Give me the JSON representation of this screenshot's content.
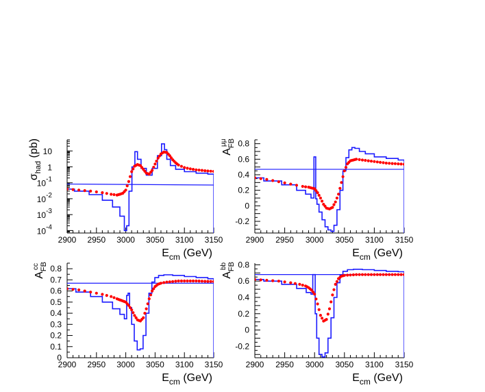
{
  "colors": {
    "blue": "#1a1aff",
    "red": "#ff0000",
    "axis": "#000000"
  },
  "chart_data": [
    {
      "type": "line",
      "panel": "sigma_had",
      "ylabel_main": "σ",
      "ylabel_sub": "had",
      "ylabel_tail": " (pb)",
      "xlabel_main": "E",
      "xlabel_sub": "cm",
      "xlabel_tail": " (GeV)",
      "xlim": [
        2900,
        3150
      ],
      "ylim": [
        7e-05,
        50
      ],
      "log_y": true,
      "xticks": [
        "2900",
        "2950",
        "3000",
        "3050",
        "3100",
        "3150"
      ],
      "yticks": [
        {
          "value": 10,
          "base": "10",
          "exp": ""
        },
        {
          "value": 1,
          "base": "1",
          "exp": ""
        },
        {
          "value": 0.1,
          "base": "10",
          "exp": "-1"
        },
        {
          "value": 0.01,
          "base": "10",
          "exp": "-2"
        },
        {
          "value": 0.001,
          "base": "10",
          "exp": "-3"
        },
        {
          "value": 0.0001,
          "base": "10",
          "exp": "-4"
        }
      ],
      "series": [
        {
          "style": "hline",
          "color": "blue",
          "x": [
            2900,
            3150
          ],
          "y": [
            0.083,
            0.072
          ]
        },
        {
          "style": "step",
          "color": "blue",
          "x": [
            2900,
            2925,
            2950,
            2970,
            2985,
            2995,
            3000,
            3003,
            3008,
            3013,
            3018,
            3022,
            3030,
            3040,
            3050,
            3058,
            3064,
            3068,
            3072,
            3080,
            3090,
            3110,
            3130,
            3150
          ],
          "y": [
            0.04,
            0.03,
            0.018,
            0.008,
            0.003,
            0.0008,
            0.0001,
            0.0002,
            0.03,
            1.0,
            9,
            3,
            0.8,
            0.3,
            0.8,
            5,
            28,
            12,
            3,
            1.2,
            0.7,
            0.5,
            0.4,
            0.35
          ]
        },
        {
          "style": "dots",
          "color": "red",
          "x": [
            2900,
            2920,
            2940,
            2960,
            2975,
            2985,
            2990,
            2995,
            3000,
            3005,
            3010,
            3015,
            3020,
            3025,
            3030,
            3035,
            3040,
            3045,
            3050,
            3055,
            3060,
            3065,
            3070,
            3075,
            3080,
            3085,
            3090,
            3100,
            3110,
            3120,
            3130,
            3140,
            3150
          ],
          "y": [
            0.04,
            0.035,
            0.03,
            0.024,
            0.019,
            0.017,
            0.019,
            0.022,
            0.035,
            0.12,
            0.5,
            1.1,
            1.4,
            1.2,
            0.7,
            0.4,
            0.35,
            0.6,
            1.5,
            3.5,
            6.5,
            8.5,
            8.0,
            5.0,
            2.8,
            1.8,
            1.3,
            0.9,
            0.75,
            0.65,
            0.6,
            0.55,
            0.52
          ]
        }
      ]
    },
    {
      "type": "line",
      "panel": "afb_mumu",
      "ylabel_main": "A",
      "ylabel_sub": "FB",
      "ylabel_sup": "μμ",
      "xlabel_main": "E",
      "xlabel_sub": "cm",
      "xlabel_tail": " (GeV)",
      "xlim": [
        2900,
        3150
      ],
      "ylim": [
        -0.35,
        0.85
      ],
      "xticks": [
        "2900",
        "2950",
        "3000",
        "3050",
        "3100",
        "3150"
      ],
      "yticks": [
        "-0.2",
        "0",
        "0.2",
        "0.4",
        "0.6",
        "0.8"
      ],
      "series": [
        {
          "style": "hline",
          "color": "blue",
          "x": [
            2900,
            3150
          ],
          "y": [
            0.47,
            0.47
          ]
        },
        {
          "style": "step",
          "color": "blue",
          "x": [
            2900,
            2930,
            2960,
            2980,
            2990,
            2998,
            3000,
            3001,
            3003,
            3005,
            3010,
            3015,
            3020,
            3025,
            3030,
            3035,
            3040,
            3045,
            3050,
            3055,
            3060,
            3065,
            3070,
            3080,
            3090,
            3110,
            3130,
            3150
          ],
          "y": [
            0.36,
            0.32,
            0.27,
            0.2,
            0.15,
            0.1,
            0.63,
            0.63,
            0.09,
            0.02,
            -0.08,
            -0.18,
            -0.27,
            -0.31,
            -0.33,
            -0.25,
            -0.05,
            0.2,
            0.45,
            0.62,
            0.72,
            0.75,
            0.74,
            0.7,
            0.67,
            0.63,
            0.61,
            0.59
          ]
        },
        {
          "style": "dots",
          "color": "red",
          "x": [
            2900,
            2920,
            2940,
            2960,
            2980,
            2990,
            2995,
            3000,
            3005,
            3010,
            3015,
            3020,
            3025,
            3030,
            3035,
            3040,
            3045,
            3050,
            3055,
            3060,
            3065,
            3070,
            3080,
            3090,
            3100,
            3110,
            3120,
            3130,
            3140,
            3150
          ],
          "y": [
            0.36,
            0.34,
            0.31,
            0.28,
            0.25,
            0.24,
            0.23,
            0.22,
            0.17,
            0.1,
            0.02,
            -0.03,
            -0.04,
            -0.02,
            0.05,
            0.15,
            0.3,
            0.45,
            0.54,
            0.58,
            0.59,
            0.6,
            0.59,
            0.58,
            0.57,
            0.56,
            0.55,
            0.545,
            0.54,
            0.535
          ]
        }
      ]
    },
    {
      "type": "line",
      "panel": "afb_cc",
      "ylabel_main": "A",
      "ylabel_sub": "FB",
      "ylabel_sup": "cc",
      "xlabel_main": "E",
      "xlabel_sub": "cm",
      "xlabel_tail": " (GeV)",
      "xlim": [
        2900,
        3150
      ],
      "ylim": [
        0,
        0.85
      ],
      "xticks": [
        "2900",
        "2950",
        "3000",
        "3050",
        "3100",
        "3150"
      ],
      "yticks": [
        "0",
        "0.1",
        "0.2",
        "0.3",
        "0.4",
        "0.5",
        "0.6",
        "0.7",
        "0.8"
      ],
      "series": [
        {
          "style": "hline",
          "color": "blue",
          "x": [
            2900,
            3150
          ],
          "y": [
            0.67,
            0.67
          ]
        },
        {
          "style": "step",
          "color": "blue",
          "x": [
            2900,
            2930,
            2950,
            2970,
            2985,
            2995,
            3000,
            3003,
            3005,
            3008,
            3012,
            3017,
            3022,
            3027,
            3032,
            3037,
            3042,
            3047,
            3052,
            3060,
            3070,
            3090,
            3110,
            3130,
            3150
          ],
          "y": [
            0.62,
            0.59,
            0.55,
            0.5,
            0.44,
            0.39,
            0.35,
            0.56,
            0.58,
            0.45,
            0.3,
            0.15,
            0.07,
            0.08,
            0.2,
            0.4,
            0.58,
            0.68,
            0.72,
            0.74,
            0.745,
            0.74,
            0.73,
            0.72,
            0.71
          ]
        },
        {
          "style": "dots",
          "color": "red",
          "x": [
            2900,
            2920,
            2940,
            2960,
            2975,
            2985,
            2990,
            2995,
            3000,
            3005,
            3010,
            3015,
            3020,
            3025,
            3030,
            3035,
            3040,
            3045,
            3050,
            3055,
            3060,
            3070,
            3080,
            3090,
            3100,
            3110,
            3120,
            3130,
            3140,
            3150
          ],
          "y": [
            0.62,
            0.61,
            0.59,
            0.57,
            0.55,
            0.53,
            0.52,
            0.51,
            0.5,
            0.47,
            0.43,
            0.38,
            0.34,
            0.33,
            0.36,
            0.44,
            0.53,
            0.6,
            0.64,
            0.66,
            0.67,
            0.68,
            0.685,
            0.69,
            0.69,
            0.69,
            0.69,
            0.688,
            0.686,
            0.685
          ]
        }
      ]
    },
    {
      "type": "line",
      "panel": "afb_bb",
      "ylabel_main": "A",
      "ylabel_sub": "FB",
      "ylabel_sup": "bb",
      "xlabel_main": "E",
      "xlabel_sub": "cm",
      "xlabel_tail": " (GeV)",
      "xlim": [
        2900,
        3150
      ],
      "ylim": [
        -0.34,
        0.82
      ],
      "xticks": [
        "2900",
        "2950",
        "3000",
        "3050",
        "3100",
        "3150"
      ],
      "yticks": [
        "-0.2",
        "0",
        "0.2",
        "0.4",
        "0.6",
        "0.8"
      ],
      "series": [
        {
          "style": "hline",
          "color": "blue",
          "x": [
            2900,
            3150
          ],
          "y": [
            0.68,
            0.68
          ]
        },
        {
          "style": "step",
          "color": "blue",
          "x": [
            2900,
            2930,
            2960,
            2980,
            2992,
            2996,
            2998,
            3000,
            3002,
            3005,
            3010,
            3015,
            3020,
            3025,
            3030,
            3035,
            3040,
            3045,
            3050,
            3060,
            3070,
            3090,
            3110,
            3130,
            3150
          ],
          "y": [
            0.62,
            0.6,
            0.56,
            0.51,
            0.46,
            0.44,
            0.68,
            0.68,
            0.2,
            -0.1,
            -0.3,
            -0.33,
            -0.28,
            -0.1,
            0.15,
            0.4,
            0.58,
            0.67,
            0.72,
            0.74,
            0.745,
            0.74,
            0.73,
            0.72,
            0.715
          ]
        },
        {
          "style": "dots",
          "color": "red",
          "x": [
            2900,
            2920,
            2940,
            2960,
            2975,
            2985,
            2990,
            2995,
            3000,
            3005,
            3010,
            3015,
            3020,
            3025,
            3030,
            3035,
            3040,
            3045,
            3050,
            3060,
            3070,
            3080,
            3090,
            3100,
            3110,
            3120,
            3130,
            3140,
            3150
          ],
          "y": [
            0.62,
            0.61,
            0.6,
            0.58,
            0.56,
            0.54,
            0.52,
            0.49,
            0.44,
            0.32,
            0.18,
            0.11,
            0.13,
            0.26,
            0.43,
            0.56,
            0.63,
            0.66,
            0.67,
            0.675,
            0.68,
            0.68,
            0.68,
            0.68,
            0.68,
            0.68,
            0.68,
            0.68,
            0.68
          ]
        }
      ]
    }
  ]
}
